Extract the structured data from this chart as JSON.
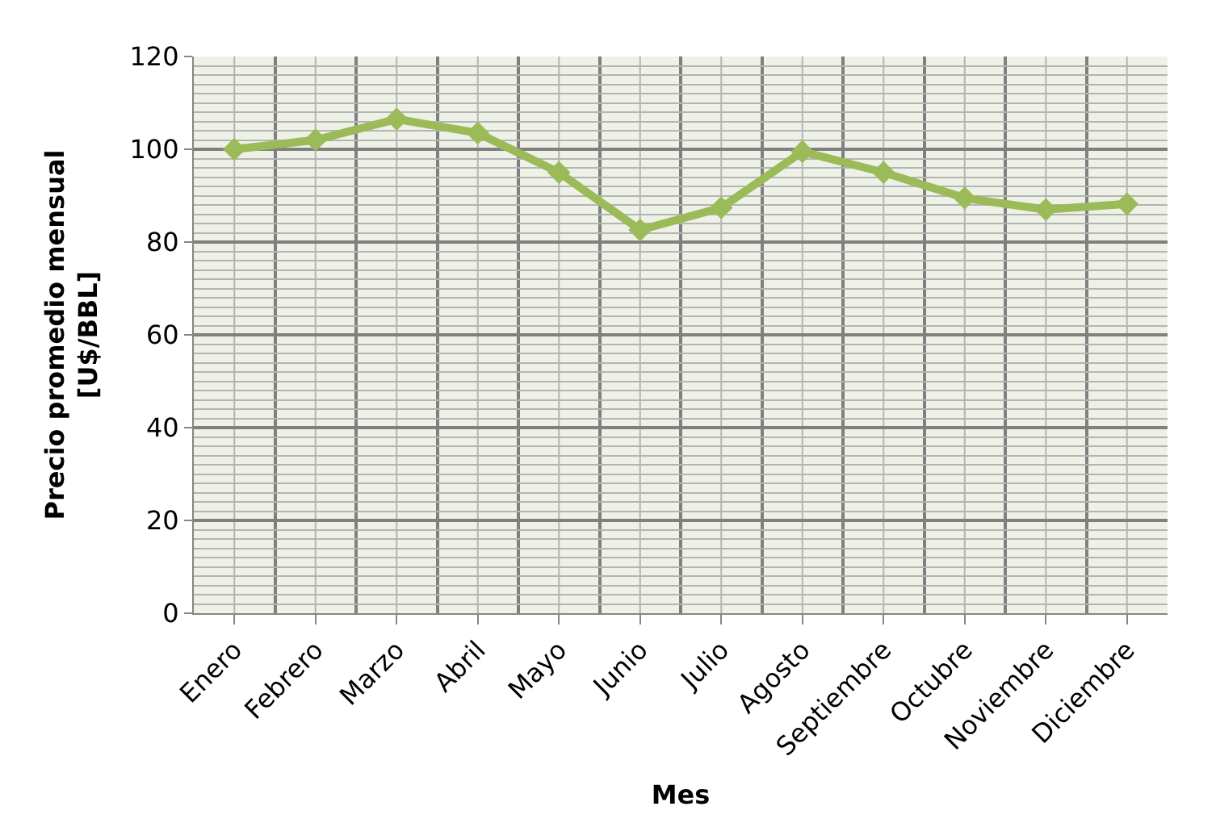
{
  "chart_data": {
    "type": "line",
    "xlabel": "Mes",
    "ylabel": "Precio promedio mensual\n[U$/BBL]",
    "categories": [
      "Enero",
      "Febrero",
      "Marzo",
      "Abril",
      "Mayo",
      "Junio",
      "Julio",
      "Agosto",
      "Septiembre",
      "Octubre",
      "Noviembre",
      "Diciembre"
    ],
    "series": [
      {
        "color": "#9bbb59",
        "values": [
          100,
          102,
          106.5,
          103.5,
          95,
          82.6,
          87.4,
          99.5,
          95,
          89.5,
          87,
          88.2
        ]
      }
    ],
    "ylim": [
      0,
      120
    ],
    "yticks": [
      0,
      20,
      40,
      60,
      80,
      100,
      120
    ],
    "grid": true,
    "marker": "diamond",
    "line_style": "solid"
  }
}
